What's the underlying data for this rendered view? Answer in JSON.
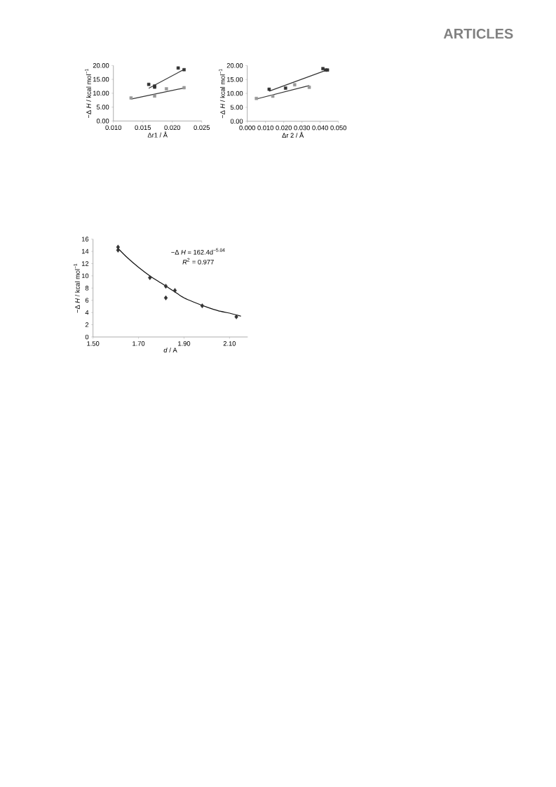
{
  "chart_data": [
    {
      "type": "scatter",
      "xlabel": "Δr1 / Å",
      "ylabel": "−Δ *H* / kcal mol$^{−1}$",
      "xlim": [
        0.01,
        0.025
      ],
      "ylim": [
        0,
        20
      ],
      "xticks": [
        {
          "value": 0.01,
          "label": "0.010"
        },
        {
          "value": 0.015,
          "label": "0.015"
        },
        {
          "value": 0.02,
          "label": "0.020"
        },
        {
          "value": 0.025,
          "label": "0.025"
        }
      ],
      "yticks": [
        {
          "value": 0,
          "label": "0.00"
        },
        {
          "value": 5,
          "label": "5.00"
        },
        {
          "value": 10,
          "label": "10.00"
        },
        {
          "value": 15,
          "label": "15.00"
        },
        {
          "value": 20,
          "label": "20.00"
        }
      ],
      "annotations": [
        "ARTICLES"
      ],
      "series": [
        {
          "marker": "square",
          "color": "#333333",
          "x": [
            0.016,
            0.017,
            0.017,
            0.021,
            0.022
          ],
          "values": [
            13.2,
            12.6,
            12.2,
            19.1,
            18.5
          ]
        },
        {
          "marker": "square",
          "color": "#999999",
          "x": [
            0.013,
            0.017,
            0.019,
            0.022
          ],
          "values": [
            8.3,
            9.0,
            11.6,
            12.0
          ]
        },
        {
          "type": "line",
          "marker": "none",
          "color": "#333333",
          "x": [
            0.016,
            0.022
          ],
          "values": [
            11.8,
            18.6
          ]
        },
        {
          "type": "line",
          "marker": "none",
          "color": "#333333",
          "x": [
            0.013,
            0.022
          ],
          "values": [
            7.9,
            11.9
          ]
        }
      ]
    },
    {
      "type": "scatter",
      "xlabel": "Δr 2 / Å",
      "ylabel": "−Δ *H* / kcal mol$^{−1}$",
      "xlim": [
        0.0,
        0.05
      ],
      "ylim": [
        0,
        20
      ],
      "xticks": [
        {
          "value": 0.0,
          "label": "0.000"
        },
        {
          "value": 0.01,
          "label": "0.010"
        },
        {
          "value": 0.02,
          "label": "0.020"
        },
        {
          "value": 0.03,
          "label": "0.030"
        },
        {
          "value": 0.04,
          "label": "0.040"
        },
        {
          "value": 0.05,
          "label": "0.050"
        }
      ],
      "yticks": [
        {
          "value": 0,
          "label": "0.00"
        },
        {
          "value": 5,
          "label": "5.00"
        },
        {
          "value": 10,
          "label": "10.00"
        },
        {
          "value": 15,
          "label": "15.00"
        },
        {
          "value": 20,
          "label": "20.00"
        }
      ],
      "series": [
        {
          "marker": "square",
          "color": "#333333",
          "x": [
            0.012,
            0.021,
            0.0415,
            0.043,
            0.044
          ],
          "values": [
            11.5,
            11.9,
            18.9,
            18.4,
            18.4
          ]
        },
        {
          "marker": "square",
          "color": "#999999",
          "x": [
            0.005,
            0.014,
            0.026,
            0.034
          ],
          "values": [
            8.2,
            9.0,
            13.1,
            12.2
          ]
        },
        {
          "type": "line",
          "marker": "none",
          "color": "#333333",
          "x": [
            0.012,
            0.044
          ],
          "values": [
            10.8,
            18.5
          ]
        },
        {
          "type": "line",
          "marker": "none",
          "color": "#333333",
          "x": [
            0.005,
            0.034
          ],
          "values": [
            8.0,
            12.8
          ]
        }
      ]
    },
    {
      "type": "scatter",
      "xlabel": "*d* / A",
      "ylabel": "−Δ *H* / kcal mol$^{−1}$",
      "xlim": [
        1.5,
        2.18
      ],
      "ylim": [
        0,
        16
      ],
      "xticks": [
        {
          "value": 1.5,
          "label": "1.50"
        },
        {
          "value": 1.7,
          "label": "1.70"
        },
        {
          "value": 1.9,
          "label": "1.90"
        },
        {
          "value": 2.1,
          "label": "2.10"
        }
      ],
      "yticks": [
        0,
        2,
        4,
        6,
        8,
        10,
        12,
        14,
        16
      ],
      "annotations": [
        "−Δ *H* = 162.4d$^{−5.04}$",
        "*R*$^{2}$ = 0.977"
      ],
      "series": [
        {
          "marker": "diamond",
          "color": "#333333",
          "x": [
            1.61,
            1.61,
            1.75,
            1.82,
            1.82,
            1.86,
            1.98,
            2.13
          ],
          "values": [
            14.7,
            14.2,
            9.7,
            8.3,
            6.4,
            7.6,
            5.1,
            3.3
          ]
        },
        {
          "type": "line",
          "marker": "none",
          "color": "#111111",
          "x": [
            1.61,
            1.65,
            1.7,
            1.75,
            1.8,
            1.85,
            1.9,
            1.95,
            2.0,
            2.05,
            2.1,
            2.15
          ],
          "values": [
            14.5,
            13.0,
            11.4,
            10.0,
            8.8,
            7.6,
            6.4,
            5.6,
            4.9,
            4.3,
            3.9,
            3.4
          ]
        }
      ]
    }
  ]
}
